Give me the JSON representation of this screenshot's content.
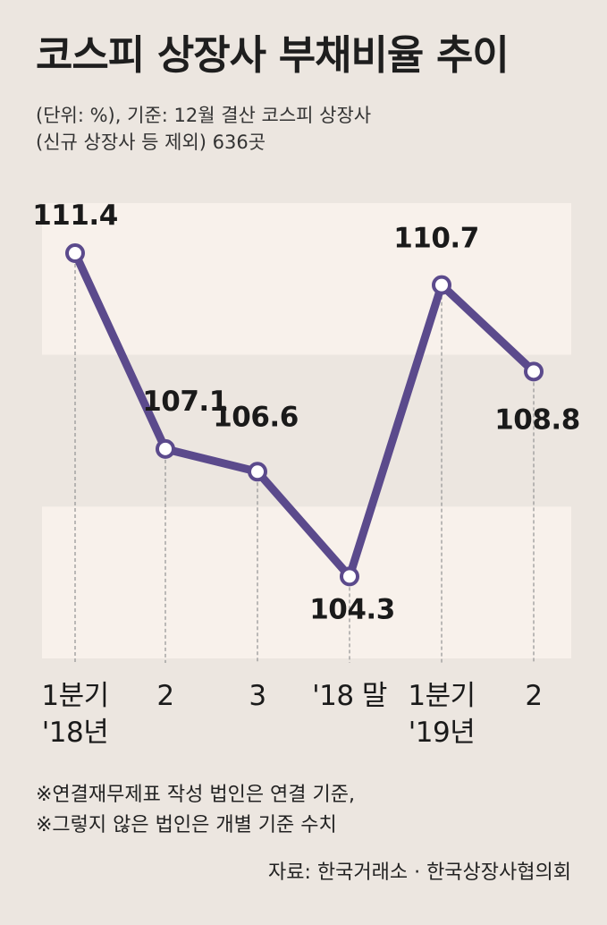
{
  "header": {
    "title": "코스피 상장사 부채비율 추이",
    "subtitle_lines": [
      "(단위: %), 기준: 12월 결산 코스피 상장사",
      "(신규 상장사 등 제외) 636곳"
    ]
  },
  "chart_data": {
    "type": "line",
    "title": "코스피 상장사 부채비율 추이",
    "unit": "%",
    "categories": [
      "1분기\n'18년",
      "2",
      "3",
      "'18 말",
      "1분기\n'19년",
      "2"
    ],
    "values": [
      111.4,
      107.1,
      106.6,
      104.3,
      110.7,
      108.8
    ],
    "value_labels": [
      "111.4",
      "107.1",
      "106.6",
      "104.3",
      "110.7",
      "108.8"
    ],
    "ylim": [
      102.5,
      112.5
    ],
    "series_color": "#5b4a8c",
    "band_colors": [
      "#f8f1eb",
      "#ece6e0"
    ],
    "grid": false
  },
  "footer": {
    "notes": [
      "※연결재무제표 작성 법인은 연결 기준,",
      "※그렇지 않은 법인은 개별 기준 수치"
    ],
    "source": "자료: 한국거래소 · 한국상장사협의회"
  }
}
